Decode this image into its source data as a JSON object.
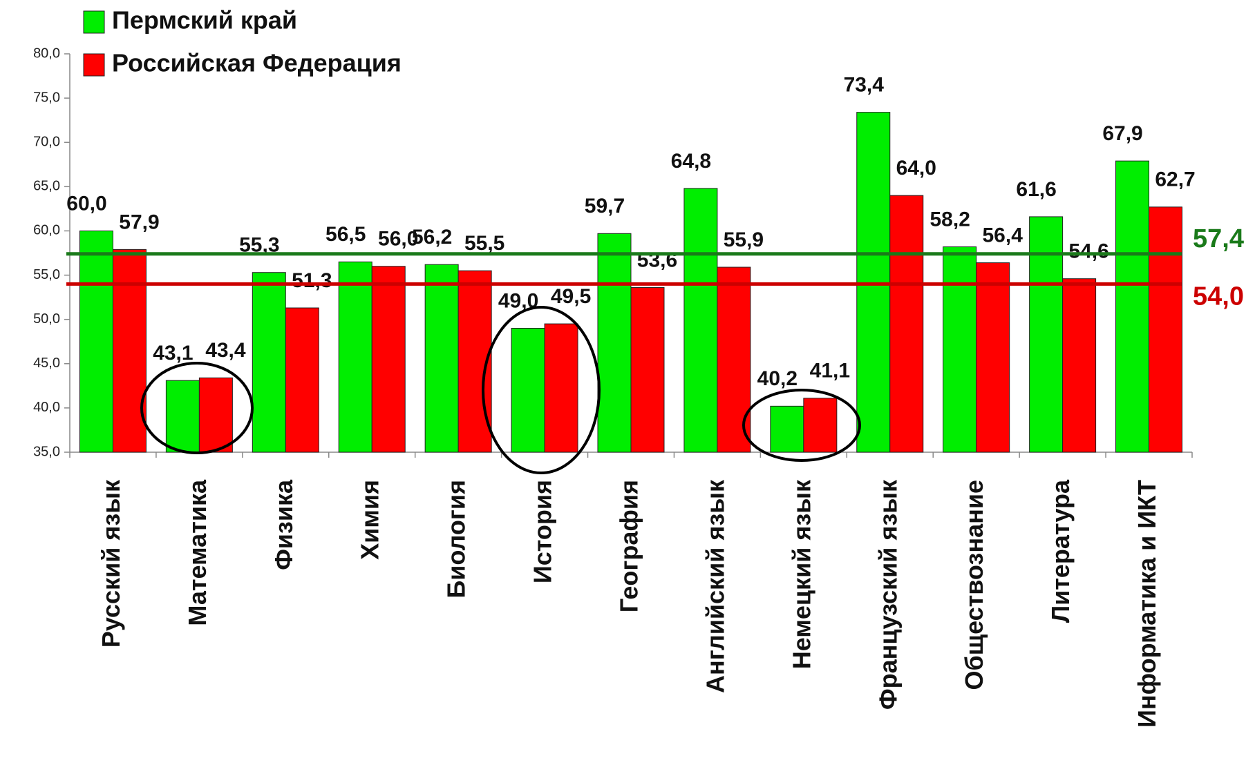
{
  "chart_data": {
    "type": "bar",
    "categories": [
      "Русский язык",
      "Математика",
      "Физика",
      "Химия",
      "Биология",
      "История",
      "География",
      "Английский язык",
      "Немецкий язык",
      "Французский язык",
      "Обществознание",
      "Литература",
      "Информатика и ИКТ"
    ],
    "series": [
      {
        "name": "Пермский край",
        "color": "#00ee00",
        "values": [
          60.0,
          43.1,
          55.3,
          56.5,
          56.2,
          49.0,
          59.7,
          64.8,
          40.2,
          73.4,
          58.2,
          61.6,
          67.9
        ],
        "value_labels": [
          "60,0",
          "43,1",
          "55,3",
          "56,5",
          "56,2",
          "49,0",
          "59,7",
          "64,8",
          "40,2",
          "73,4",
          "58,2",
          "61,6",
          "67,9"
        ]
      },
      {
        "name": "Российская Федерация",
        "color": "#ff0000",
        "values": [
          57.9,
          43.4,
          51.3,
          56.0,
          55.5,
          49.5,
          53.6,
          55.9,
          41.1,
          64.0,
          56.4,
          54.6,
          62.7
        ],
        "value_labels": [
          "57,9",
          "43,4",
          "51,3",
          "56,0",
          "55,5",
          "49,5",
          "53,6",
          "55,9",
          "41,1",
          "64,0",
          "56,4",
          "54,6",
          "62,7"
        ]
      }
    ],
    "reference_lines": [
      {
        "value": 57.4,
        "label": "57,4",
        "color": "#1a7a1a"
      },
      {
        "value": 54.0,
        "label": "54,0",
        "color": "#cc0000"
      }
    ],
    "ylim": [
      35,
      80
    ],
    "yticks": [
      {
        "value": 35,
        "label": "35,0"
      },
      {
        "value": 40,
        "label": "40,0"
      },
      {
        "value": 45,
        "label": "45,0"
      },
      {
        "value": 50,
        "label": "50,0"
      },
      {
        "value": 55,
        "label": "55,0"
      },
      {
        "value": 60,
        "label": "60,0"
      },
      {
        "value": 65,
        "label": "65,0"
      },
      {
        "value": 70,
        "label": "70,0"
      },
      {
        "value": 75,
        "label": "75,0"
      },
      {
        "value": 80,
        "label": "80,0"
      }
    ],
    "legend": "top-left"
  }
}
